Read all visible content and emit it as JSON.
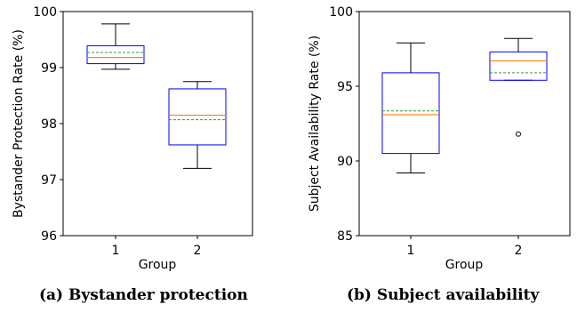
{
  "chart_data": [
    {
      "type": "box",
      "xlabel": "Group",
      "ylabel": "Bystander Protection Rate (%)",
      "ylim": [
        96,
        100
      ],
      "yticks": [
        "96",
        "97",
        "98",
        "99",
        "100"
      ],
      "categories": [
        "1",
        "2"
      ],
      "boxes": [
        {
          "category": "1",
          "whisker_low": 98.97,
          "q1": 99.07,
          "median": 99.18,
          "mean": 99.27,
          "q3": 99.39,
          "whisker_high": 99.78,
          "outliers": []
        },
        {
          "category": "2",
          "whisker_low": 97.2,
          "q1": 97.62,
          "median": 98.15,
          "mean": 98.07,
          "q3": 98.62,
          "whisker_high": 98.75,
          "outliers": []
        }
      ],
      "caption": "(a) Bystander protection",
      "colors": {
        "box": "#0000ff",
        "median": "#ff7f0e",
        "mean": "#2ca02c",
        "whisker": "#000000"
      }
    },
    {
      "type": "box",
      "xlabel": "Group",
      "ylabel": "Subject Availability Rate (%)",
      "ylim": [
        85,
        100
      ],
      "yticks": [
        "85",
        "90",
        "95",
        "100"
      ],
      "categories": [
        "1",
        "2"
      ],
      "boxes": [
        {
          "category": "1",
          "whisker_low": 89.2,
          "q1": 90.5,
          "median": 93.1,
          "mean": 93.35,
          "q3": 95.9,
          "whisker_high": 97.9,
          "outliers": []
        },
        {
          "category": "2",
          "whisker_low": 95.4,
          "q1": 95.4,
          "median": 96.7,
          "mean": 95.9,
          "q3": 97.3,
          "whisker_high": 98.2,
          "outliers": [
            91.8
          ]
        }
      ],
      "caption": "(b) Subject availability",
      "colors": {
        "box": "#0000ff",
        "median": "#ff7f0e",
        "mean": "#2ca02c",
        "whisker": "#000000"
      }
    }
  ]
}
